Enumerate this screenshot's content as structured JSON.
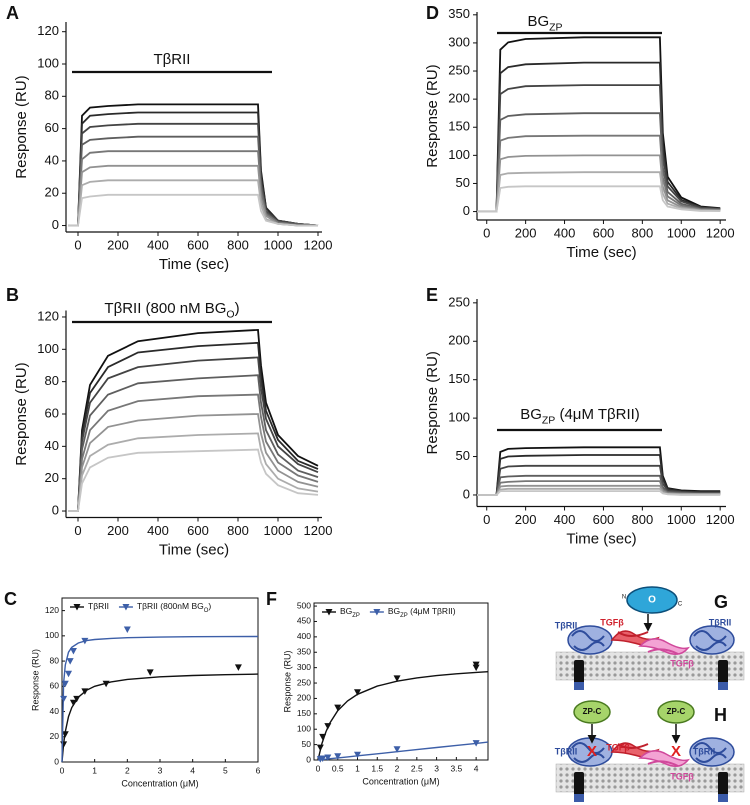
{
  "chart_data": [
    {
      "type": "line",
      "panel": "A",
      "xlabel": "Time (sec)",
      "ylabel": "Response (RU)",
      "annotation": [
        "TβRII"
      ],
      "x": [
        -50,
        0,
        20,
        60,
        150,
        300,
        600,
        900,
        915,
        940,
        1000,
        1100,
        1200
      ],
      "xlim": [
        -60,
        1220
      ],
      "xticks": [
        0,
        200,
        400,
        600,
        800,
        1000,
        1200
      ],
      "ylim": [
        -4,
        126
      ],
      "yticks": [
        0,
        20,
        40,
        60,
        80,
        100,
        120
      ],
      "series": [
        {
          "color": "#111111",
          "values": [
            0,
            0,
            68,
            73,
            74,
            75,
            75,
            75,
            34,
            11,
            3,
            1,
            0
          ]
        },
        {
          "color": "#2a2a2a",
          "values": [
            0,
            0,
            63,
            68,
            69,
            70,
            70,
            70,
            32,
            11,
            3,
            1,
            0
          ]
        },
        {
          "color": "#444444",
          "values": [
            0,
            0,
            57,
            61,
            62,
            63,
            63,
            63,
            28,
            9,
            3,
            1,
            0
          ]
        },
        {
          "color": "#5e5e5e",
          "values": [
            0,
            0,
            50,
            53,
            54,
            55,
            55,
            55,
            25,
            8,
            2,
            1,
            0
          ]
        },
        {
          "color": "#777777",
          "values": [
            0,
            0,
            41,
            45,
            46,
            46,
            46,
            46,
            21,
            7,
            2,
            0,
            0
          ]
        },
        {
          "color": "#929292",
          "values": [
            0,
            0,
            33,
            36,
            37,
            37,
            37,
            37,
            17,
            6,
            1,
            0,
            0
          ]
        },
        {
          "color": "#acacac",
          "values": [
            0,
            0,
            25,
            27,
            28,
            28,
            28,
            28,
            13,
            4,
            1,
            0,
            0
          ]
        },
        {
          "color": "#c6c6c6",
          "values": [
            0,
            0,
            17,
            18,
            19,
            19,
            19,
            19,
            9,
            3,
            1,
            0,
            0
          ]
        }
      ]
    },
    {
      "type": "line",
      "panel": "B",
      "xlabel": "Time (sec)",
      "ylabel": "Response (RU)",
      "annotation": [
        "TβRII (800 nM BG",
        "O",
        ")"
      ],
      "x": [
        -50,
        0,
        20,
        60,
        150,
        300,
        600,
        900,
        915,
        940,
        1000,
        1100,
        1200
      ],
      "xlim": [
        -60,
        1220
      ],
      "xticks": [
        0,
        200,
        400,
        600,
        800,
        1000,
        1200
      ],
      "ylim": [
        -4,
        124
      ],
      "yticks": [
        0,
        20,
        40,
        60,
        80,
        100,
        120
      ],
      "series": [
        {
          "color": "#111111",
          "values": [
            0,
            0,
            50,
            78,
            96,
            105,
            110,
            112,
            90,
            67,
            47,
            34,
            28
          ]
        },
        {
          "color": "#2a2a2a",
          "values": [
            0,
            0,
            47,
            73,
            89,
            98,
            102,
            104,
            83,
            62,
            44,
            31,
            26
          ]
        },
        {
          "color": "#444444",
          "values": [
            0,
            0,
            43,
            67,
            82,
            89,
            93,
            95,
            76,
            57,
            40,
            29,
            24
          ]
        },
        {
          "color": "#5e5e5e",
          "values": [
            0,
            0,
            38,
            59,
            72,
            79,
            82,
            84,
            67,
            50,
            35,
            25,
            21
          ]
        },
        {
          "color": "#777777",
          "values": [
            0,
            0,
            32,
            50,
            62,
            68,
            71,
            72,
            58,
            43,
            30,
            22,
            18
          ]
        },
        {
          "color": "#929292",
          "values": [
            0,
            0,
            27,
            42,
            52,
            56,
            59,
            60,
            48,
            36,
            25,
            18,
            15
          ]
        },
        {
          "color": "#acacac",
          "values": [
            0,
            0,
            22,
            34,
            41,
            45,
            47,
            48,
            38,
            29,
            20,
            14,
            12
          ]
        },
        {
          "color": "#c6c6c6",
          "values": [
            0,
            0,
            17,
            27,
            33,
            36,
            37,
            38,
            30,
            23,
            16,
            11,
            10
          ]
        }
      ]
    },
    {
      "type": "line",
      "panel": "D",
      "xlabel": "Time (sec)",
      "ylabel": "Response (RU)",
      "annotation": [
        "BG",
        "ZP"
      ],
      "x": [
        -50,
        40,
        50,
        70,
        110,
        200,
        500,
        890,
        905,
        930,
        1000,
        1100,
        1200
      ],
      "xlim": [
        -50,
        1230
      ],
      "xticks": [
        0,
        200,
        400,
        600,
        800,
        1000,
        1200
      ],
      "ylim": [
        -15,
        355
      ],
      "yticks": [
        0,
        50,
        100,
        150,
        200,
        250,
        300,
        350
      ],
      "series": [
        {
          "color": "#111111",
          "values": [
            0,
            0,
            0,
            288,
            301,
            307,
            310,
            310,
            140,
            62,
            25,
            9,
            6
          ]
        },
        {
          "color": "#2a2a2a",
          "values": [
            0,
            0,
            0,
            246,
            257,
            262,
            265,
            265,
            119,
            53,
            21,
            8,
            5
          ]
        },
        {
          "color": "#444444",
          "values": [
            0,
            0,
            0,
            209,
            218,
            223,
            225,
            225,
            101,
            45,
            18,
            7,
            5
          ]
        },
        {
          "color": "#5e5e5e",
          "values": [
            0,
            0,
            0,
            163,
            170,
            173,
            175,
            175,
            79,
            35,
            14,
            5,
            4
          ]
        },
        {
          "color": "#777777",
          "values": [
            0,
            0,
            0,
            126,
            131,
            134,
            135,
            135,
            61,
            27,
            11,
            4,
            3
          ]
        },
        {
          "color": "#929292",
          "values": [
            0,
            0,
            0,
            93,
            97,
            99,
            100,
            100,
            45,
            20,
            8,
            3,
            2
          ]
        },
        {
          "color": "#acacac",
          "values": [
            0,
            0,
            0,
            65,
            68,
            69,
            70,
            70,
            32,
            14,
            6,
            2,
            1
          ]
        },
        {
          "color": "#c6c6c6",
          "values": [
            0,
            0,
            0,
            42,
            44,
            45,
            45,
            45,
            20,
            9,
            4,
            1,
            1
          ]
        }
      ]
    },
    {
      "type": "line",
      "panel": "E",
      "xlabel": "Time (sec)",
      "ylabel": "Response (RU)",
      "annotation": [
        "BG",
        "ZP",
        " (4μM TβRII)"
      ],
      "x": [
        -50,
        40,
        50,
        70,
        110,
        200,
        500,
        890,
        905,
        930,
        1000,
        1100,
        1200
      ],
      "xlim": [
        -50,
        1230
      ],
      "xticks": [
        0,
        200,
        400,
        600,
        800,
        1000,
        1200
      ],
      "ylim": [
        -15,
        255
      ],
      "yticks": [
        0,
        50,
        100,
        150,
        200,
        250
      ],
      "series": [
        {
          "color": "#111111",
          "values": [
            0,
            0,
            0,
            56,
            60,
            61,
            62,
            62,
            25,
            9,
            6,
            5,
            5
          ]
        },
        {
          "color": "#2a2a2a",
          "values": [
            0,
            0,
            0,
            47,
            50,
            51,
            52,
            52,
            21,
            8,
            5,
            4,
            4
          ]
        },
        {
          "color": "#444444",
          "values": [
            0,
            0,
            0,
            34,
            37,
            38,
            38,
            38,
            15,
            6,
            4,
            3,
            3
          ]
        },
        {
          "color": "#5e5e5e",
          "values": [
            0,
            0,
            0,
            23,
            24,
            25,
            25,
            25,
            10,
            4,
            3,
            2,
            2
          ]
        },
        {
          "color": "#777777",
          "values": [
            0,
            0,
            0,
            16,
            17,
            18,
            18,
            18,
            7,
            3,
            2,
            1,
            1
          ]
        },
        {
          "color": "#929292",
          "values": [
            0,
            0,
            0,
            11,
            12,
            12,
            12,
            12,
            5,
            2,
            1,
            1,
            1
          ]
        },
        {
          "color": "#acacac",
          "values": [
            0,
            0,
            0,
            7,
            8,
            8,
            8,
            8,
            3,
            1,
            1,
            1,
            1
          ]
        },
        {
          "color": "#c6c6c6",
          "values": [
            0,
            0,
            0,
            5,
            5,
            5,
            5,
            5,
            2,
            1,
            0,
            0,
            0
          ]
        }
      ]
    },
    {
      "type": "scatter",
      "panel": "C",
      "xlabel": "Concentration (μM)",
      "ylabel": "Response (RU)",
      "legend": "top",
      "xlim": [
        0,
        6
      ],
      "xticks": [
        0,
        1,
        2,
        3,
        4,
        5,
        6
      ],
      "ylim": [
        0,
        130
      ],
      "yticks": [
        0,
        20,
        40,
        60,
        80,
        100,
        120
      ],
      "series": [
        {
          "name": [
            "TβRII"
          ],
          "color": "#111111",
          "marker": "triangle-down",
          "x": [
            0.05,
            0.1,
            0.35,
            0.45,
            0.7,
            1.35,
            2.7,
            5.4
          ],
          "values": [
            14,
            22,
            47,
            50,
            56,
            62,
            71,
            75
          ],
          "fit": {
            "x": [
              0,
              0.05,
              0.1,
              0.2,
              0.3,
              0.5,
              0.75,
              1,
              1.5,
              2,
              3,
              4,
              5,
              6
            ],
            "values": [
              0,
              14.4,
              24,
              36,
              43.2,
              51.4,
              56.8,
              60,
              63.5,
              65.5,
              67.5,
              68.6,
              69.2,
              69.7
            ]
          }
        },
        {
          "name": [
            "TβRII (800nM BG",
            "O",
            ")"
          ],
          "color": "#3d5fa8",
          "marker": "triangle-down",
          "x": [
            0.05,
            0.1,
            0.2,
            0.25,
            0.35,
            0.7,
            2
          ],
          "values": [
            50,
            62,
            70,
            80,
            88,
            96,
            105
          ],
          "fit": {
            "x": [
              0,
              0.05,
              0.1,
              0.2,
              0.3,
              0.5,
              0.75,
              1,
              1.5,
              2,
              3,
              4,
              5,
              6
            ],
            "values": [
              0,
              62.5,
              76.9,
              87,
              90.9,
              94.3,
              96.2,
              97.1,
              98,
              98.5,
              99,
              99.3,
              99.4,
              99.5
            ]
          }
        }
      ]
    },
    {
      "type": "scatter",
      "panel": "F",
      "xlabel": "Concentration (μM)",
      "ylabel": "Response (RU)",
      "legend": "top",
      "xlim": [
        -0.1,
        4.3
      ],
      "xticks": [
        0,
        0.5,
        1,
        1.5,
        2,
        2.5,
        3,
        3.5,
        4
      ],
      "ylim": [
        0,
        510
      ],
      "yticks": [
        0,
        50,
        100,
        150,
        200,
        250,
        300,
        350,
        400,
        450,
        500
      ],
      "series": [
        {
          "name": [
            "BG",
            "ZP"
          ],
          "color": "#111111",
          "marker": "triangle-down",
          "x": [
            0.06,
            0.12,
            0.25,
            0.5,
            1,
            2,
            4,
            4
          ],
          "values": [
            40,
            75,
            110,
            170,
            220,
            265,
            300,
            310
          ],
          "fit": {
            "x": [
              0,
              0.1,
              0.2,
              0.3,
              0.5,
              0.75,
              1,
              1.5,
              2,
              2.5,
              3,
              3.5,
              4,
              4.3
            ],
            "values": [
              0,
              53.3,
              91.4,
              120,
              160,
              192,
              213.3,
              240,
              256,
              266.7,
              274.3,
              280,
              284.4,
              286.7
            ]
          }
        },
        {
          "name": [
            "BG",
            "ZP",
            " (4μM TβRII)"
          ],
          "color": "#3d5fa8",
          "marker": "triangle-down",
          "x": [
            0.06,
            0.12,
            0.25,
            0.5,
            1,
            2,
            4
          ],
          "values": [
            3,
            5,
            8,
            12,
            17,
            35,
            55
          ],
          "fit": {
            "x": [
              0,
              0.1,
              0.2,
              0.3,
              0.5,
              0.75,
              1,
              1.5,
              2,
              2.5,
              3,
              3.5,
              4,
              4.3
            ],
            "values": [
              0,
              1.4,
              2.7,
              4.1,
              6.8,
              10.1,
              13.5,
              20.3,
              27,
              33.8,
              40.5,
              47.3,
              54,
              58.1
            ]
          }
        }
      ]
    }
  ],
  "diagrams": [
    {
      "panel": "G",
      "texts": [
        "O",
        "N",
        "C",
        "TβRII",
        "TGFβ",
        "TGFβ",
        "TβRII"
      ]
    },
    {
      "panel": "H",
      "texts": [
        "ZP-C",
        "ZP-C",
        "X",
        "X",
        "TβRII",
        "TGFβ",
        "TGFβ",
        "TβRII"
      ]
    }
  ]
}
